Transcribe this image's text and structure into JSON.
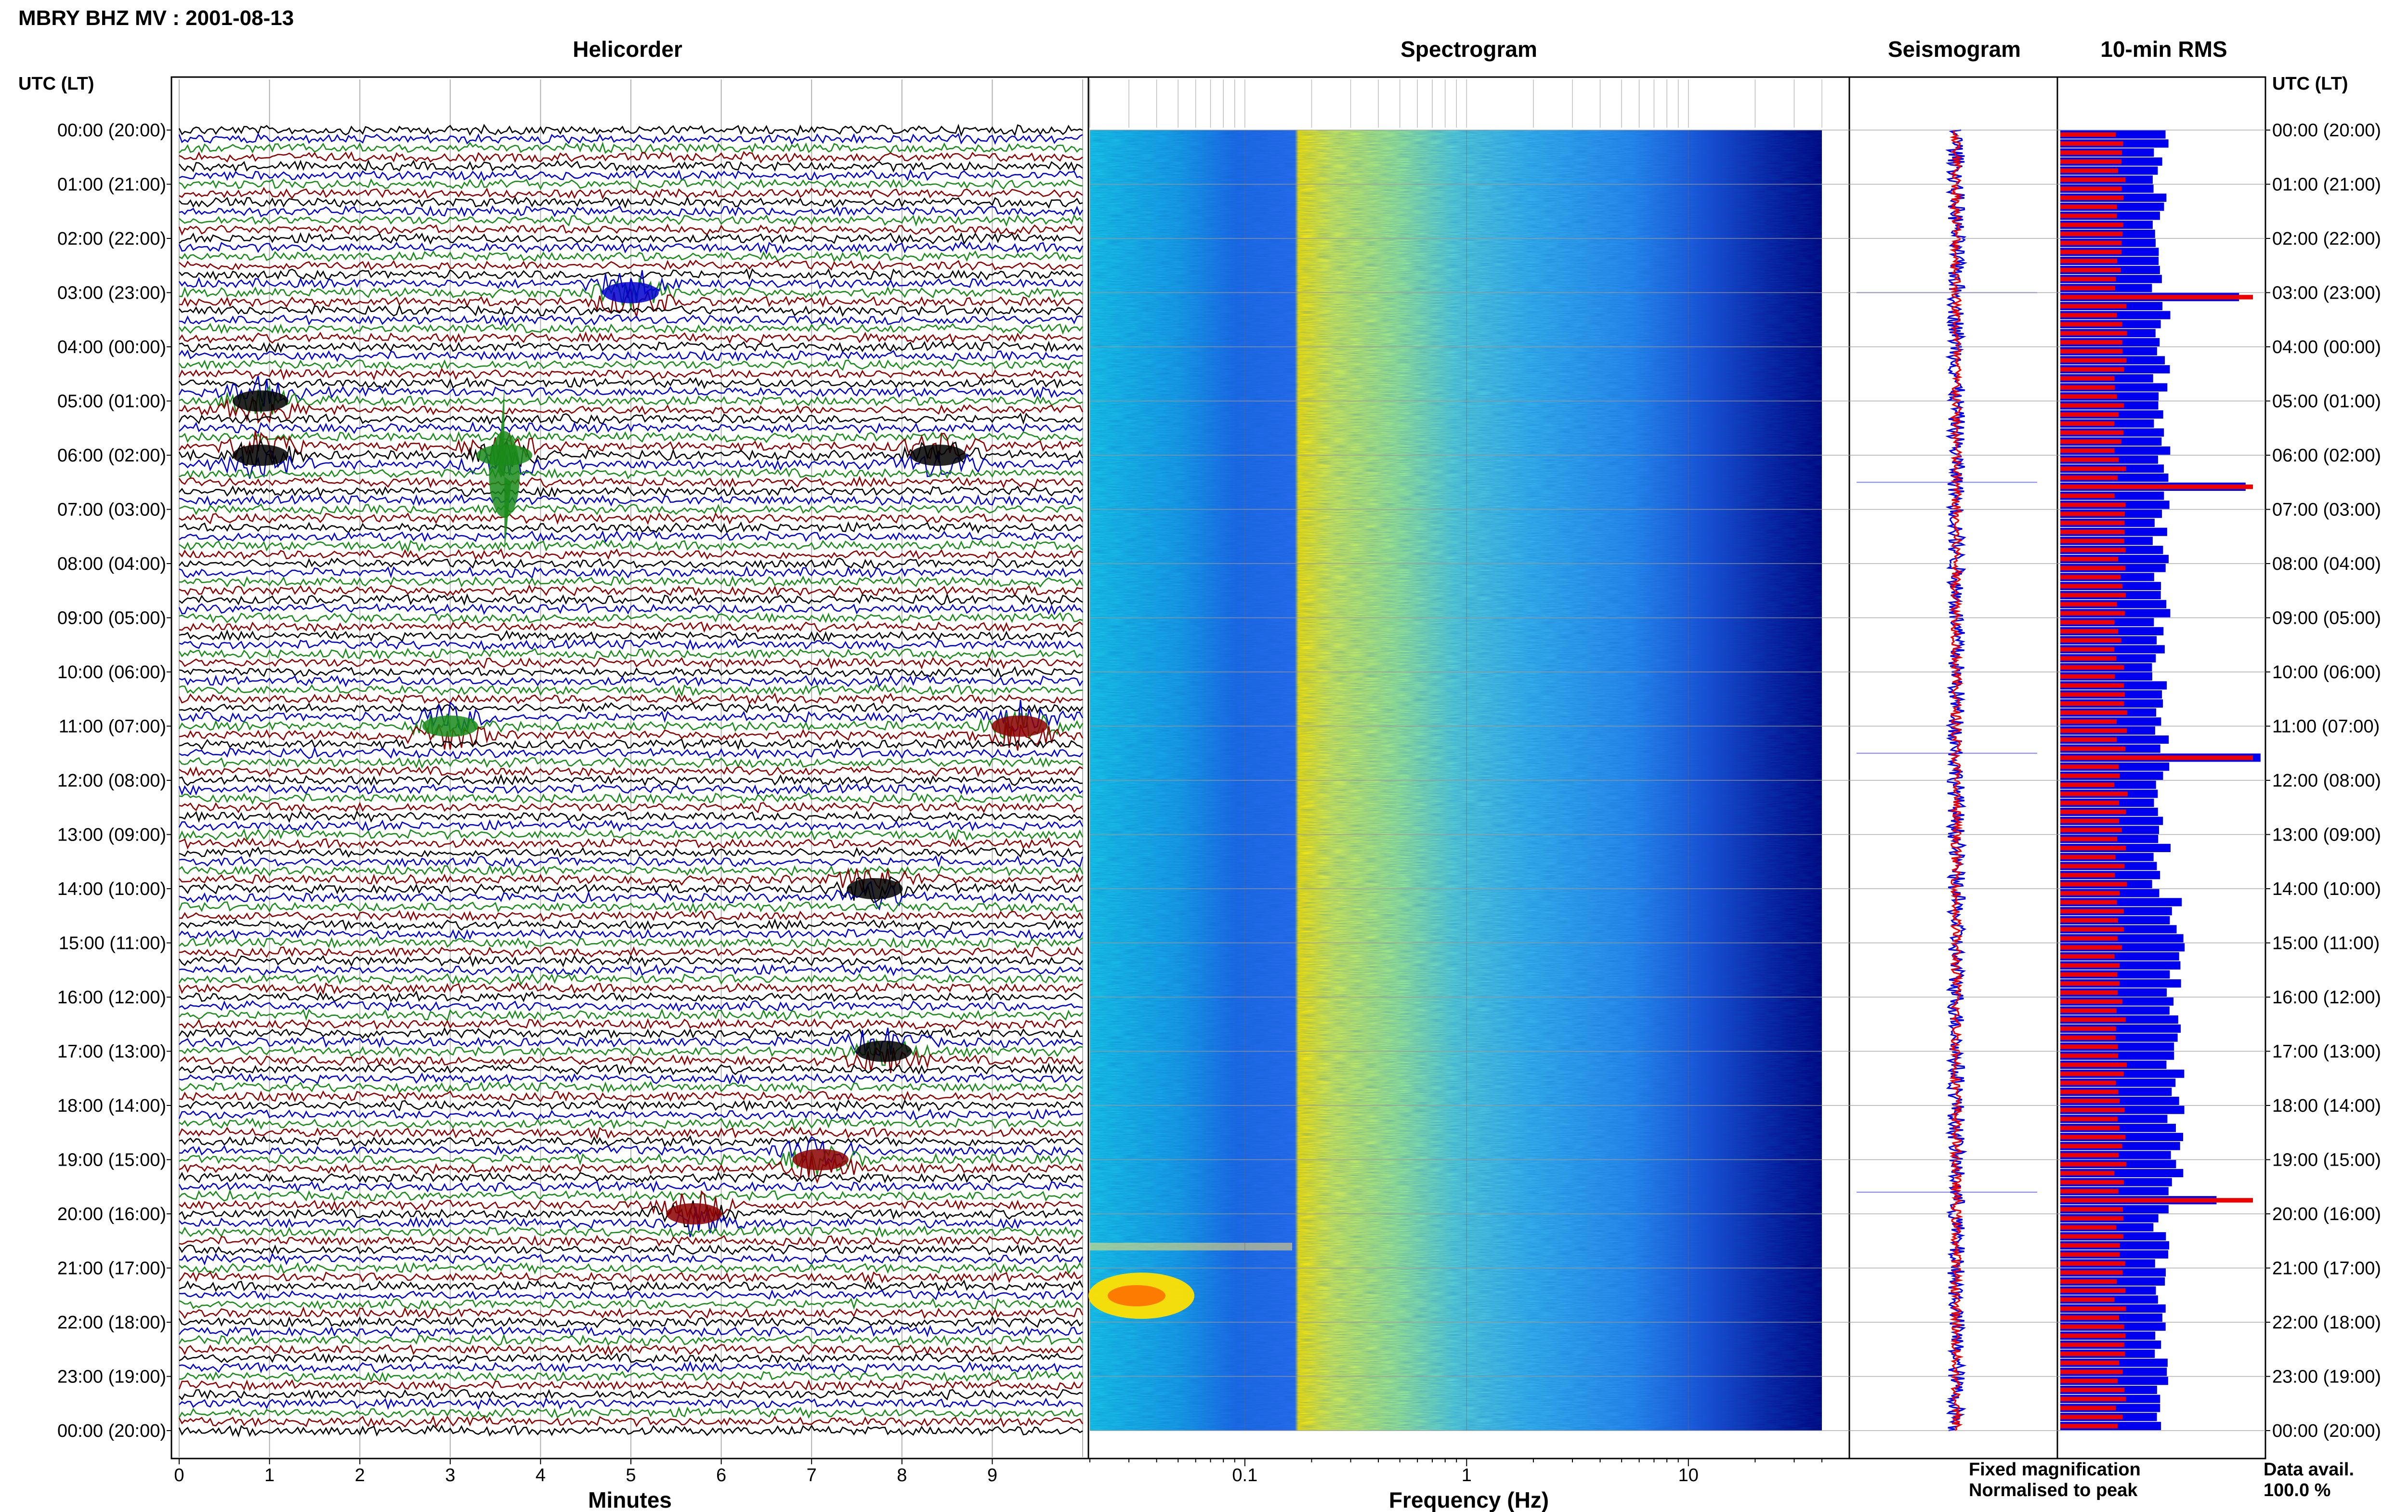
{
  "header": {
    "title": "MBRY BHZ MV : 2001-08-13"
  },
  "panels": {
    "helicorder": "Helicorder",
    "spectrogram": "Spectrogram",
    "seismogram": "Seismogram",
    "rms": "10-min RMS"
  },
  "axes": {
    "left_time_label": "UTC (LT)",
    "right_time_label": "UTC (LT)",
    "helicorder_xlabel": "Minutes",
    "spectrogram_xlabel": "Frequency (Hz)"
  },
  "legend": {
    "fixed": "Fixed magnification",
    "normalised": "Normalised to peak",
    "fixed_color": "#0000ee",
    "normalised_color": "#ee0000"
  },
  "availability": {
    "label": "Data avail.",
    "value": "100.0 %"
  },
  "chart_data": [
    {
      "panel": "Helicorder",
      "type": "line",
      "xlabel": "Minutes",
      "ylabel": "UTC (LT)",
      "xlim": [
        0,
        10
      ],
      "x_ticks": [
        "0",
        "1",
        "2",
        "3",
        "4",
        "5",
        "6",
        "7",
        "8",
        "9"
      ],
      "y_ticks": [
        "00:00 (20:00)",
        "01:00 (21:00)",
        "02:00 (22:00)",
        "03:00 (23:00)",
        "04:00 (00:00)",
        "05:00 (01:00)",
        "06:00 (02:00)",
        "07:00 (03:00)",
        "08:00 (04:00)",
        "09:00 (05:00)",
        "10:00 (06:00)",
        "11:00 (07:00)",
        "12:00 (08:00)",
        "13:00 (09:00)",
        "14:00 (10:00)",
        "15:00 (11:00)",
        "16:00 (12:00)",
        "17:00 (13:00)",
        "18:00 (14:00)",
        "19:00 (15:00)",
        "20:00 (16:00)",
        "21:00 (17:00)",
        "22:00 (18:00)",
        "23:00 (19:00)",
        "00:00 (20:00)"
      ],
      "traces_per_hour": 6,
      "trace_colors": [
        "#000000",
        "#0000cc",
        "#1a8a1a",
        "#8b0000"
      ],
      "events": [
        {
          "hour": 3,
          "minute": 5.0,
          "color": "#0000cc"
        },
        {
          "hour": 5,
          "minute": 0.9,
          "color": "#000000"
        },
        {
          "hour": 6,
          "minute": 0.9,
          "color": "#000000"
        },
        {
          "hour": 6,
          "minute": 3.6,
          "color": "#1a8a1a"
        },
        {
          "hour": 6,
          "minute": 8.4,
          "color": "#000000"
        },
        {
          "hour": 11,
          "minute": 3.0,
          "color": "#1a8a1a"
        },
        {
          "hour": 11,
          "minute": 9.3,
          "color": "#8b0000"
        },
        {
          "hour": 14,
          "minute": 7.7,
          "color": "#000000"
        },
        {
          "hour": 17,
          "minute": 7.8,
          "color": "#000000"
        },
        {
          "hour": 19,
          "minute": 7.1,
          "color": "#8b0000"
        },
        {
          "hour": 20,
          "minute": 5.7,
          "color": "#8b0000"
        }
      ]
    },
    {
      "panel": "Spectrogram",
      "type": "heatmap",
      "xlabel": "Frequency (Hz)",
      "x_scale": "log",
      "xlim": [
        0.02,
        40
      ],
      "x_ticks": [
        "0.1",
        "1",
        "10"
      ],
      "colormap": [
        "#00007f",
        "#0000ff",
        "#00a0ff",
        "#30e0e0",
        "#a0ff60",
        "#ffff00",
        "#ff9000",
        "#ff0000"
      ],
      "band_floor_hz": 0.2
    },
    {
      "panel": "Seismogram",
      "type": "line",
      "series": [
        {
          "name": "Fixed magnification",
          "color": "#0000ee"
        },
        {
          "name": "Normalised to peak",
          "color": "#ee0000"
        }
      ]
    },
    {
      "panel": "10-min RMS",
      "type": "bar",
      "series": [
        {
          "name": "Fixed magnification",
          "color": "#0000ee"
        },
        {
          "name": "Normalised to peak",
          "color": "#ee0000"
        }
      ],
      "peak_hours": [
        3.0,
        6.5,
        11.5,
        19.6
      ]
    }
  ]
}
